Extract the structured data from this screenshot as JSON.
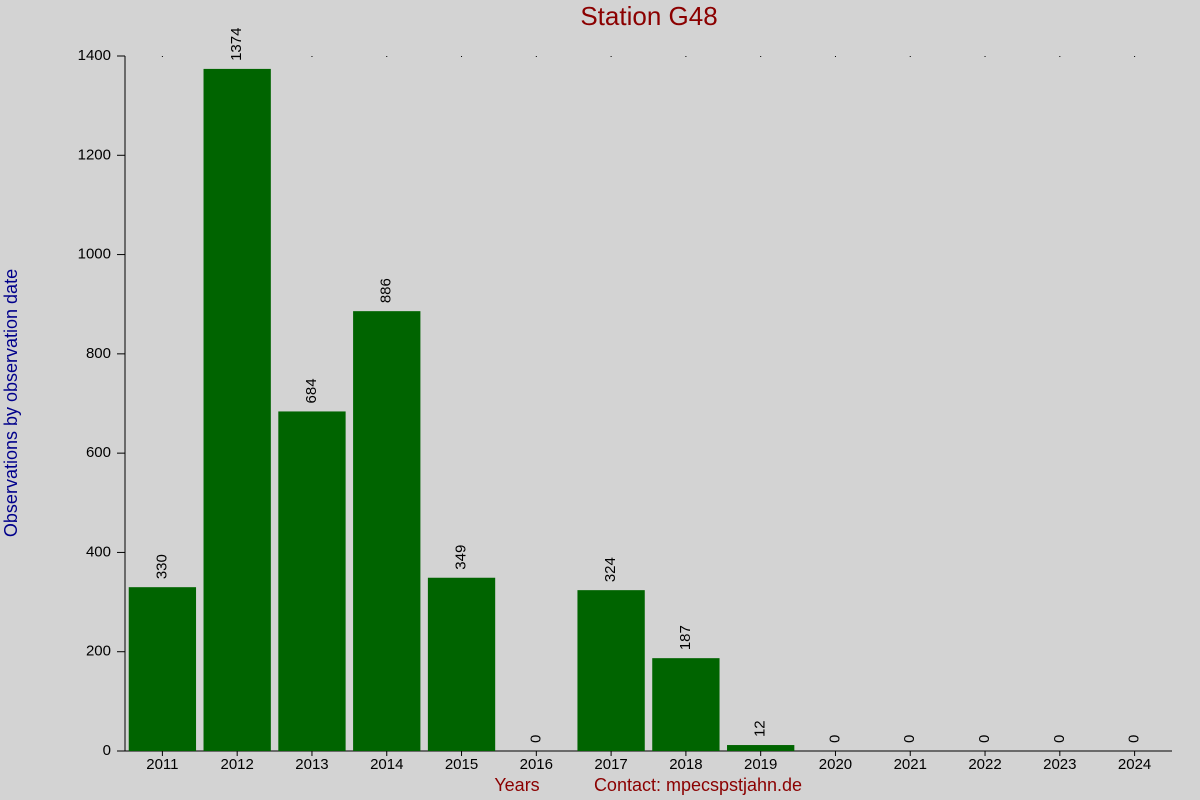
{
  "chart_data": {
    "type": "bar",
    "title": "Station G48",
    "y_label": "Observations by observation date",
    "x_label": "Years",
    "contact": "Contact: mpecspstjahn.de",
    "categories": [
      "2011",
      "2012",
      "2013",
      "2014",
      "2015",
      "2016",
      "2017",
      "2018",
      "2019",
      "2020",
      "2021",
      "2022",
      "2023",
      "2024"
    ],
    "values": [
      330,
      1374,
      684,
      886,
      349,
      0,
      324,
      187,
      12,
      0,
      0,
      0,
      0,
      0
    ],
    "color": "#006400",
    "ylim": [
      0,
      1400
    ],
    "yticks": [
      0,
      200,
      400,
      600,
      800,
      1000,
      1200,
      1400
    ]
  }
}
